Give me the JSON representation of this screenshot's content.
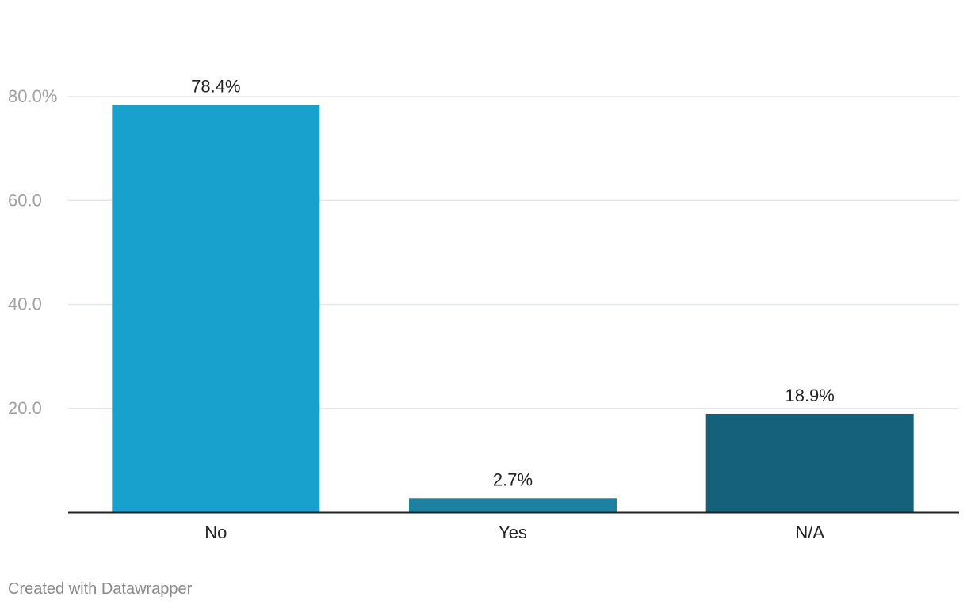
{
  "chart_data": {
    "type": "bar",
    "categories": [
      "No",
      "Yes",
      "N/A"
    ],
    "values": [
      78.4,
      2.7,
      18.9
    ],
    "value_labels": [
      "78.4%",
      "2.7%",
      "18.9%"
    ],
    "colors": [
      "#18a1cd",
      "#1d81a2",
      "#15607a"
    ],
    "ylim": [
      0,
      80
    ],
    "yticks": [
      20,
      40,
      60,
      80
    ],
    "ytick_labels": [
      "20.0",
      "40.0",
      "60.0",
      "80.0%"
    ],
    "grid": true,
    "title": "",
    "xlabel": "",
    "ylabel": ""
  },
  "footer": {
    "credit": "Created with Datawrapper"
  }
}
